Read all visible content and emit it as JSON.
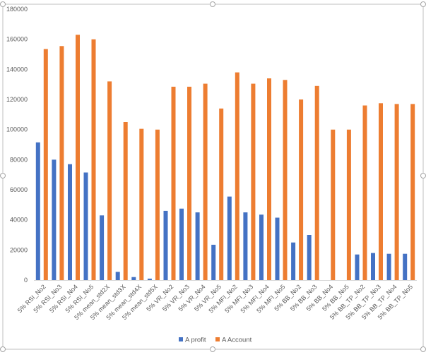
{
  "chart_data": {
    "type": "bar",
    "title": "",
    "xlabel": "",
    "ylabel": "",
    "ylim": [
      0,
      180000
    ],
    "yticks": [
      0,
      20000,
      40000,
      60000,
      80000,
      100000,
      120000,
      140000,
      160000,
      180000
    ],
    "grid": false,
    "legend_position": "bottom",
    "categories": [
      "5% RSI_No2",
      "5% RSI_No3",
      "5% RSI_No4",
      "5% RSI_No5",
      "5% mean_std2X",
      "5% mean_std3X",
      "5% mean_std4X",
      "5% mean_std5X",
      "5% VR_No2",
      "5% VR_No3",
      "5% VR_No4",
      "5% VR_No5",
      "5% MFI_No2",
      "5% MFI_No3",
      "5% MFI_No4",
      "5% MFI_No5",
      "5% BB_No2",
      "5% BB_No3",
      "5% BB_No4",
      "5% BB_No5",
      "5% BB_TP_No2",
      "5% BB_TP_No3",
      "5% BB_TP_No4",
      "5% BB_TP_No5"
    ],
    "series": [
      {
        "name": "A profit",
        "color": "#4472C4",
        "values": [
          91500,
          80000,
          77000,
          71500,
          43000,
          5500,
          2000,
          1000,
          46000,
          47500,
          45000,
          23500,
          55500,
          45000,
          43500,
          41500,
          25000,
          30000,
          0,
          0,
          17000,
          18000,
          17500,
          17500
        ]
      },
      {
        "name": "A Account",
        "color": "#ED7D31",
        "values": [
          153500,
          155500,
          163000,
          160000,
          132000,
          105000,
          100500,
          100000,
          128500,
          128500,
          130500,
          114000,
          138000,
          130500,
          134000,
          133000,
          120000,
          129000,
          100000,
          100000,
          116000,
          117500,
          117000,
          117000
        ]
      }
    ]
  }
}
